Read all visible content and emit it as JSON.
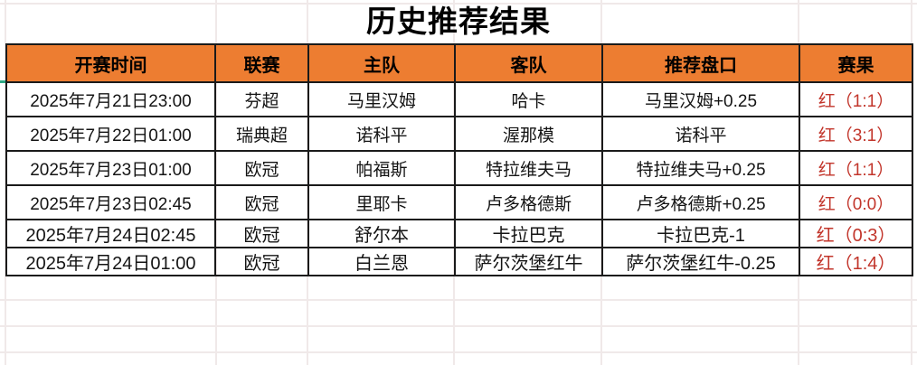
{
  "title": "历史推荐结果",
  "colors": {
    "header_bg": "#ED7D31",
    "result_red": "#C2352B",
    "table_border": "#1a1a1a",
    "gridline": "#f0e9e9",
    "teal_mark": "#2fa884"
  },
  "table": {
    "headers": {
      "time": "开赛时间",
      "league": "联赛",
      "home": "主队",
      "away": "客队",
      "handicap": "推荐盘口",
      "result": "赛果"
    },
    "rows": [
      {
        "time": "2025年7月21日23:00",
        "league": "芬超",
        "home": "马里汉姆",
        "away": "哈卡",
        "handicap": "马里汉姆+0.25",
        "result": "红（1:1）"
      },
      {
        "time": "2025年7月22日01:00",
        "league": "瑞典超",
        "home": "诺科平",
        "away": "渥那模",
        "handicap": "诺科平",
        "result": "红（3:1）"
      },
      {
        "time": "2025年7月23日01:00",
        "league": "欧冠",
        "home": "帕福斯",
        "away": "特拉维夫马",
        "handicap": "特拉维夫马+0.25",
        "result": "红（1:1）"
      },
      {
        "time": "2025年7月23日02:45",
        "league": "欧冠",
        "home": "里耶卡",
        "away": "卢多格德斯",
        "handicap": "卢多格德斯+0.25",
        "result": "红（0:0）"
      },
      {
        "time": "2025年7月24日02:45",
        "league": "欧冠",
        "home": "舒尔本",
        "away": "卡拉巴克",
        "handicap": "卡拉巴克-1",
        "result": "红（0:3）"
      },
      {
        "time": "2025年7月24日01:00",
        "league": "欧冠",
        "home": "白兰恩",
        "away": "萨尔茨堡红牛",
        "handicap": "萨尔茨堡红牛-0.25",
        "result": "红（1:4）"
      }
    ]
  }
}
